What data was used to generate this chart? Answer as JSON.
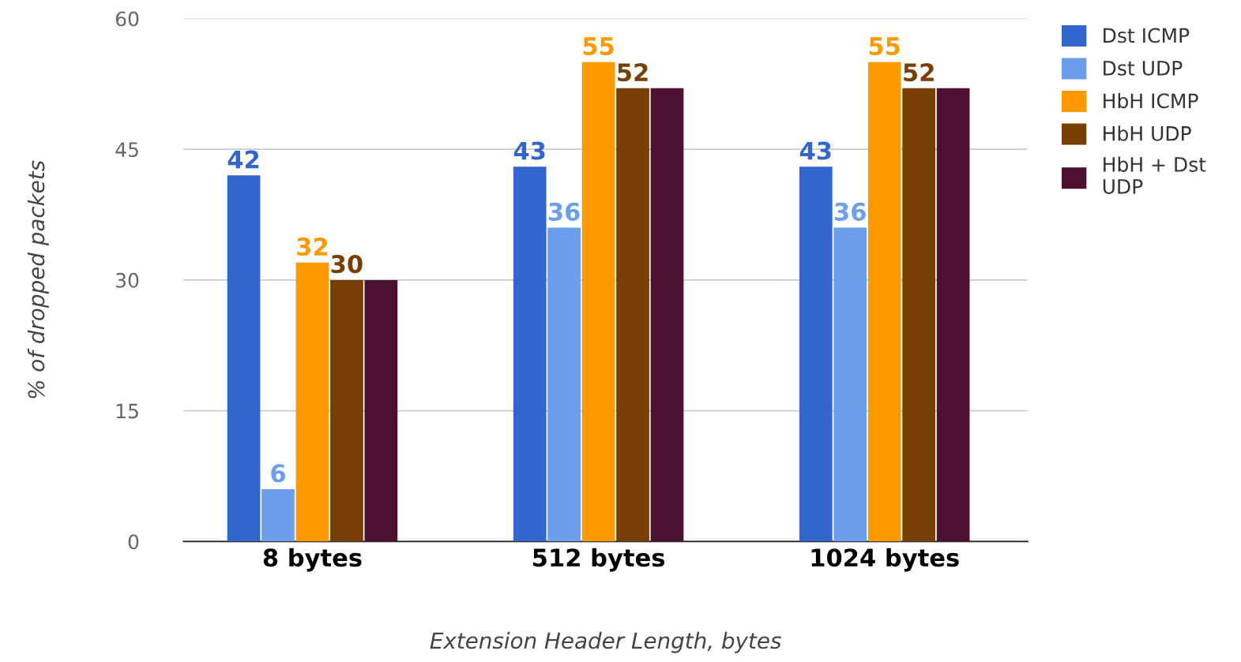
{
  "chart_data": {
    "type": "bar",
    "xlabel": "Extension Header Length, bytes",
    "ylabel": "% of dropped packets",
    "categories": [
      "8 bytes",
      "512 bytes",
      "1024 bytes"
    ],
    "series": [
      {
        "name": "Dst ICMP",
        "color": "#3366cc",
        "values": [
          42,
          43,
          43
        ],
        "value_labels": [
          "42",
          "43",
          "43"
        ]
      },
      {
        "name": "Dst UDP",
        "color": "#6d9eeb",
        "values": [
          6,
          36,
          36
        ],
        "value_labels": [
          "6",
          "36",
          "36"
        ]
      },
      {
        "name": "HbH ICMP",
        "color": "#ff9900",
        "values": [
          32,
          55,
          55
        ],
        "value_labels": [
          "32",
          "55",
          "55"
        ]
      },
      {
        "name": "HbH UDP",
        "color": "#783f04",
        "values": [
          30,
          52,
          52
        ],
        "value_labels": [
          "30",
          "52",
          "52"
        ]
      },
      {
        "name": "HbH + Dst UDP",
        "color": "#4c1130",
        "values": [
          30,
          52,
          52
        ],
        "value_labels": [
          null,
          null,
          null
        ]
      }
    ],
    "ylim": [
      0,
      60
    ],
    "yticks": [
      0,
      15,
      30,
      45,
      60
    ],
    "grid": "y",
    "legend": "top right"
  }
}
